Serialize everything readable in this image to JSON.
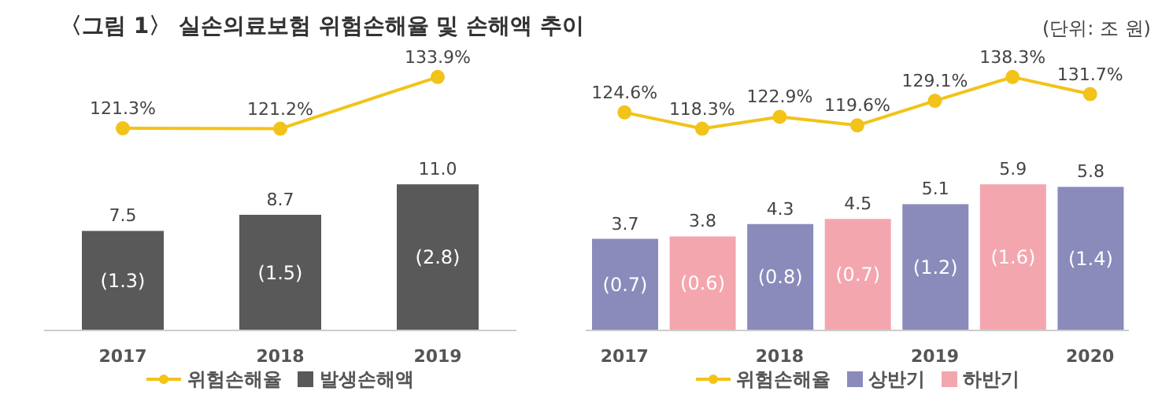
{
  "chart_data": [
    {
      "type": "line",
      "title": "〈그림 1〉 실손의료보험 위험손해율 및 손해액 추이",
      "categories": [
        null,
        null,
        null
      ],
      "legend": "bottom",
      "marker": "circle",
      "series": [
        {
          "name": "위험손해율",
          "color": "#f2c318",
          "values": [
            121.3,
            121.2,
            133.9
          ],
          "value_labels": [
            "121.3%",
            "121.2%",
            "133.9%"
          ]
        }
      ]
    },
    {
      "type": "bar",
      "categories": [
        "2017",
        "2018",
        "2019"
      ],
      "legend": "bottom",
      "series": [
        {
          "name": "발생손해액",
          "color": "#595959",
          "values": [
            7.5,
            8.7,
            11.0
          ],
          "value_labels": [
            "7.5",
            "8.7",
            "11.0"
          ]
        }
      ],
      "annotations": [
        "(1.3)",
        "(1.5)",
        "(2.8)"
      ]
    },
    {
      "type": "line",
      "subtitle": "(단위: 조 원)",
      "categories": [
        null,
        null,
        null,
        null,
        null,
        null,
        null
      ],
      "legend": "bottom",
      "marker": "circle",
      "series": [
        {
          "name": "위험손해율",
          "color": "#f2c318",
          "values": [
            124.6,
            118.3,
            122.9,
            119.6,
            129.1,
            138.3,
            131.7
          ],
          "value_labels": [
            "124.6%",
            "118.3%",
            "122.9%",
            "119.6%",
            "129.1%",
            "138.3%",
            "131.7%"
          ]
        }
      ]
    },
    {
      "type": "bar",
      "categories": [
        "2017",
        null,
        "2018",
        null,
        "2019",
        null,
        "2020"
      ],
      "legend": "bottom",
      "stacked": true,
      "series": [
        {
          "name": "상반기",
          "color": "#8a8bbb",
          "values": [
            3.7,
            null,
            4.3,
            null,
            5.1,
            null,
            5.8
          ],
          "value_labels": [
            "3.7",
            null,
            "4.3",
            null,
            "5.1",
            null,
            "5.8"
          ]
        },
        {
          "name": "하반기",
          "color": "#f4a6ae",
          "values": [
            null,
            3.8,
            null,
            4.5,
            null,
            5.9,
            null
          ],
          "value_labels": [
            null,
            "3.8",
            null,
            "4.5",
            null,
            "5.9",
            null
          ]
        }
      ],
      "annotations": [
        "(0.7)",
        "(0.6)",
        "(0.8)",
        "(0.7)",
        "(1.2)",
        "(1.6)",
        "(1.4)"
      ]
    }
  ]
}
